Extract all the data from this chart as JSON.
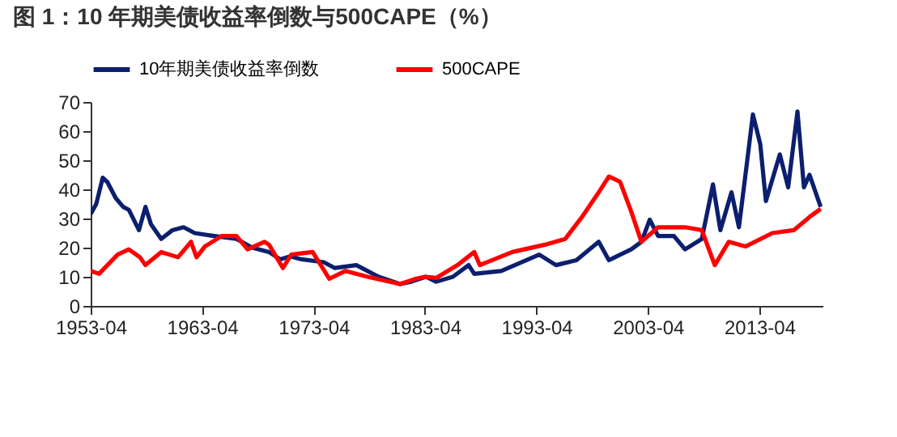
{
  "chart_data": {
    "type": "line",
    "title": "图 1：10 年期美债收益率倒数与500CAPE（%）",
    "ylim": [
      0,
      70
    ],
    "yticks": [
      0,
      10,
      20,
      30,
      40,
      50,
      60,
      70
    ],
    "xlim": [
      "1953-04",
      "2018-12"
    ],
    "xticks": [
      {
        "value": "1953-04",
        "label": "1953-04"
      },
      {
        "value": "1963-04",
        "label": "1963-04"
      },
      {
        "value": "1973-04",
        "label": "1973-04"
      },
      {
        "value": "1983-04",
        "label": "1983-04"
      },
      {
        "value": "1993-04",
        "label": "1993-04"
      },
      {
        "value": "2003-04",
        "label": "2003-04"
      },
      {
        "value": "2013-04",
        "label": "2013-04"
      }
    ],
    "grid": false,
    "legend": "top",
    "marker": "none",
    "line_style": "solid",
    "series": [
      {
        "name": "10年期美债收益率倒数",
        "color": "#0c1f6e",
        "x": [
          "1953-04",
          "1953-10",
          "1954-05",
          "1954-10",
          "1955-07",
          "1956-03",
          "1956-09",
          "1957-08",
          "1958-03",
          "1958-09",
          "1959-08",
          "1960-08",
          "1961-08",
          "1962-08",
          "1964-05",
          "1966-05",
          "1967-10",
          "1969-04",
          "1970-04",
          "1971-03",
          "1972-03",
          "1974-03",
          "1975-03",
          "1977-02",
          "1979-02",
          "1981-01",
          "1982-01",
          "1983-05",
          "1984-04",
          "1985-10",
          "1987-03",
          "1987-09",
          "1990-02",
          "1993-07",
          "1995-01",
          "1996-11",
          "1998-11",
          "1999-10",
          "2001-10",
          "2002-09",
          "2003-06",
          "2004-03",
          "2005-08",
          "2006-08",
          "2008-02",
          "2009-02",
          "2009-10",
          "2010-10",
          "2011-06",
          "2012-03",
          "2012-09",
          "2013-05",
          "2013-11",
          "2015-02",
          "2015-11",
          "2016-09",
          "2017-04",
          "2017-10",
          "2018-10"
        ],
        "values": [
          31.5,
          35,
          44,
          42.5,
          37,
          34,
          33,
          26,
          34,
          28,
          23,
          26,
          27,
          25,
          24,
          23,
          20,
          18.5,
          16,
          17,
          16,
          15,
          13,
          14,
          10,
          7.5,
          8.3,
          10,
          8.3,
          10,
          14,
          11,
          12,
          17.6,
          14,
          15.7,
          22,
          15.7,
          19.4,
          22,
          29.6,
          24,
          24,
          19.4,
          23,
          41.7,
          26,
          39,
          27,
          50,
          65.7,
          55.5,
          36,
          52,
          40.7,
          66.7,
          40.7,
          45,
          34
        ]
      },
      {
        "name": "500CAPE",
        "color": "#ff0000",
        "x": [
          "1953-04",
          "1954-01",
          "1955-09",
          "1956-09",
          "1957-09",
          "1958-03",
          "1959-08",
          "1961-02",
          "1962-04",
          "1962-10",
          "1963-07",
          "1965-01",
          "1966-05",
          "1967-05",
          "1968-11",
          "1969-04",
          "1970-07",
          "1971-04",
          "1973-03",
          "1974-09",
          "1976-02",
          "1978-02",
          "1981-01",
          "1982-06",
          "1983-04",
          "1984-04",
          "1986-03",
          "1987-09",
          "1988-03",
          "1991-02",
          "1994-01",
          "1995-11",
          "1997-05",
          "1998-11",
          "1999-10",
          "2000-10",
          "2001-10",
          "2002-09",
          "2004-03",
          "2006-08",
          "2008-02",
          "2009-04",
          "2010-07",
          "2012-01",
          "2014-06",
          "2016-05",
          "2017-10",
          "2018-10"
        ],
        "values": [
          12,
          11,
          17.6,
          19.4,
          16.7,
          14,
          18.5,
          16.7,
          22,
          16.7,
          20.4,
          24,
          24,
          19.4,
          22,
          21,
          13,
          17.6,
          18.5,
          9.3,
          12,
          10,
          7.5,
          9.3,
          10,
          9.6,
          14,
          18.5,
          14,
          18.5,
          21,
          23,
          30.5,
          39,
          44.4,
          42.6,
          32.4,
          22,
          27,
          27,
          26,
          14,
          22,
          20.4,
          25,
          26,
          30.5,
          33.3
        ]
      }
    ]
  }
}
